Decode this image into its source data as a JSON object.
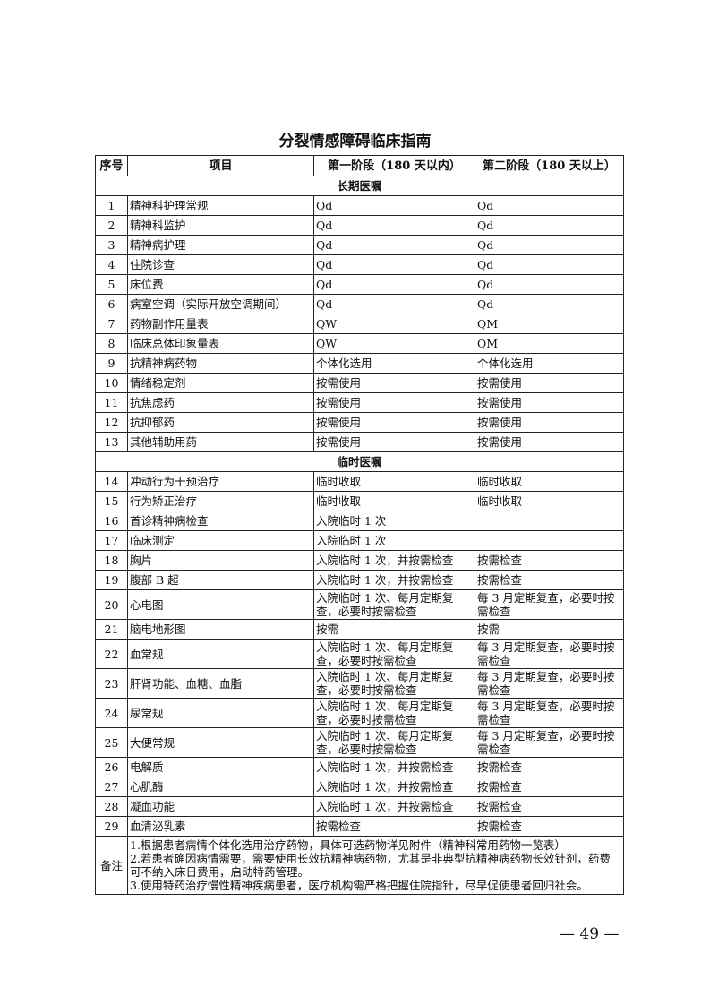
{
  "title": "分裂情感障碍临床指南",
  "headers": [
    "序号",
    "项目",
    "第一阶段（180 天以内）",
    "第二阶段（180 天以上）"
  ],
  "sections": [
    {
      "label": "长期医嘱",
      "rows": [
        [
          "1",
          "精神科护理常规",
          "Qd",
          "Qd"
        ],
        [
          "2",
          "精神科监护",
          "Qd",
          "Qd"
        ],
        [
          "3",
          "精神病护理",
          "Qd",
          "Qd"
        ],
        [
          "4",
          "住院诊查",
          "Qd",
          "Qd"
        ],
        [
          "5",
          "床位费",
          "Qd",
          "Qd"
        ],
        [
          "6",
          "病室空调（实际开放空调期间）",
          "Qd",
          "Qd"
        ],
        [
          "7",
          "药物副作用量表",
          "QW",
          "QM"
        ],
        [
          "8",
          "临床总体印象量表",
          "QW",
          "QM"
        ],
        [
          "9",
          "抗精神病药物",
          "个体化选用",
          "个体化选用"
        ],
        [
          "10",
          "情绪稳定剂",
          "按需使用",
          "按需使用"
        ],
        [
          "11",
          "抗焦虑药",
          "按需使用",
          "按需使用"
        ],
        [
          "12",
          "抗抑郁药",
          "按需使用",
          "按需使用"
        ],
        [
          "13",
          "其他辅助用药",
          "按需使用",
          "按需使用"
        ]
      ]
    },
    {
      "label": "临时医嘱",
      "rows": [
        [
          "14",
          "冲动行为干预治疗",
          "临时收取",
          "临时收取"
        ],
        [
          "15",
          "行为矫正治疗",
          "临时收取",
          "临时收取"
        ],
        [
          "16",
          "首诊精神病检查",
          "入院临时 1 次"
        ],
        [
          "17",
          "临床测定",
          "入院临时 1 次"
        ],
        [
          "18",
          "胸片",
          "入院临时 1 次，并按需检查",
          "按需检查"
        ],
        [
          "19",
          "腹部 B 超",
          "入院临时 1 次，并按需检查",
          "按需检查"
        ],
        [
          "20",
          "心电图",
          "入院临时 1 次、每月定期复查，必要时按需检查",
          "每 3 月定期复查，必要时按需检查"
        ],
        [
          "21",
          "脑电地形图",
          "按需",
          "按需"
        ],
        [
          "22",
          "血常规",
          "入院临时 1 次、每月定期复查，必要时按需检查",
          "每 3 月定期复查，必要时按需检查"
        ],
        [
          "23",
          "肝肾功能、血糖、血脂",
          "入院临时 1 次、每月定期复查，必要时按需检查",
          "每 3 月定期复查，必要时按需检查"
        ],
        [
          "24",
          "尿常规",
          "入院临时 1 次、每月定期复查，必要时按需检查",
          "每 3 月定期复查，必要时按需检查"
        ],
        [
          "25",
          "大便常规",
          "入院临时 1 次、每月定期复查，必要时按需检查",
          "每 3 月定期复查，必要时按需检查"
        ],
        [
          "26",
          "电解质",
          "入院临时 1 次，并按需检查",
          "按需检查"
        ],
        [
          "27",
          "心肌酶",
          "入院临时 1 次，并按需检查",
          "按需检查"
        ],
        [
          "28",
          "凝血功能",
          "入院临时 1 次，并按需检查",
          "按需检查"
        ],
        [
          "29",
          "血清泌乳素",
          "按需检查",
          "按需检查"
        ]
      ]
    }
  ],
  "notes": {
    "label": "备注",
    "lines": [
      "1.根据患者病情个体化选用治疗药物，具体可选药物详见附件（精神科常用药物一览表）",
      "2.若患者确因病情需要，需要使用长效抗精神病药物，尤其是非典型抗精神病药物长效针剂，药费可不纳入床日费用，启动特药管理。",
      "3.使用特药治疗慢性精神疾病患者，医疗机构需严格把握住院指针，尽早促使患者回归社会。"
    ]
  },
  "page_number": "— 49 —"
}
